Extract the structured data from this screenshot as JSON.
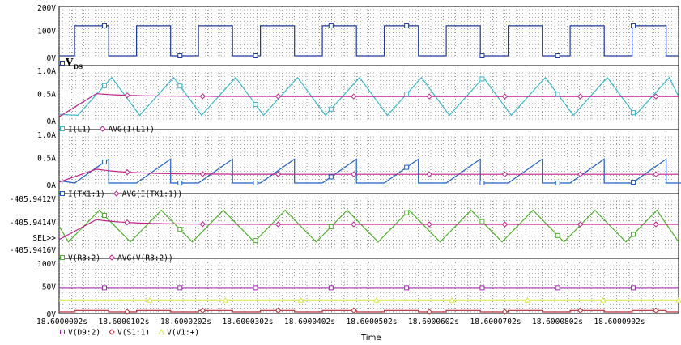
{
  "chart_data": {
    "type": "line",
    "xlabel": "Time",
    "x_tick_labels": [
      "18.6000002s",
      "18.6000102s",
      "18.6000202s",
      "18.6000302s",
      "18.6000402s",
      "18.6000502s",
      "18.6000602s",
      "18.6000702s",
      "18.6000802s",
      "18.6000902s"
    ],
    "x_range_us": [
      0,
      10
    ],
    "switching_period_us": 1,
    "grid": true,
    "panels": [
      {
        "id": "p1",
        "y_tick_labels": [
          "200V",
          "100V",
          "0V"
        ],
        "ylim": [
          0,
          200
        ],
        "series": [
          {
            "name": "V_DS",
            "color": "#1f3b9e",
            "marker": "square",
            "shape": "pulse",
            "high": 130,
            "low": 0,
            "on_fraction": 0.55
          }
        ],
        "annotation": {
          "main": "V",
          "sub": "DS"
        }
      },
      {
        "id": "p2",
        "y_tick_labels": [
          "1.0A",
          "0.5A",
          "0A"
        ],
        "ylim": [
          0,
          1
        ],
        "series": [
          {
            "name": "I(L1)",
            "color": "#3ab8c8",
            "marker": "square",
            "shape": "triangle",
            "min": 0.08,
            "max": 0.9,
            "rise_fraction": 0.55
          },
          {
            "name": "AVG(I(L1))",
            "color": "#c0228c",
            "marker": "diamond",
            "shape": "average",
            "final": 0.49,
            "start": 0.05,
            "peak": 0.55
          }
        ]
      },
      {
        "id": "p3",
        "y_tick_labels": [
          "1.0A",
          "0.5A",
          "0A"
        ],
        "ylim": [
          0,
          1
        ],
        "series": [
          {
            "name": "I(TX1:1)",
            "color": "#1f5fc4",
            "marker": "square",
            "shape": "ramp",
            "min": 0.0,
            "max": 0.52,
            "rise_fraction": 0.55
          },
          {
            "name": "AVG(I(TX1:1))",
            "color": "#c0228c",
            "marker": "diamond",
            "shape": "average",
            "final": 0.19,
            "start": 0.02,
            "peak": 0.3
          }
        ]
      },
      {
        "id": "p4",
        "y_tick_labels": [
          "-405.9412V",
          "-405.9414V",
          "-405.9416V"
        ],
        "ylim": [
          -405.9416,
          -405.9412
        ],
        "sel_label": "SEL>>",
        "series": [
          {
            "name": "V(R3:2)",
            "color": "#4caf2a",
            "marker": "square",
            "shape": "triangle_wave",
            "min": -405.94155,
            "max": -405.94128
          },
          {
            "name": "AVG(V(R3:2))",
            "color": "#c0228c",
            "marker": "diamond",
            "shape": "average",
            "final": -405.9414,
            "start": -405.94153,
            "peak": -405.94136
          }
        ]
      },
      {
        "id": "p5",
        "y_tick_labels": [
          "100V",
          "50V",
          "0V"
        ],
        "ylim": [
          0,
          100
        ],
        "series": [
          {
            "name": "V(D9:2)",
            "color": "#9b2aa8",
            "marker": "square",
            "shape": "constant",
            "value": 52
          },
          {
            "name": "V(S1:1)",
            "color": "#b0303a",
            "marker": "diamond",
            "shape": "pulse_low",
            "high": 3,
            "low": 0,
            "on_fraction": 0.55
          },
          {
            "name": "V(V1:+)",
            "color": "#d6e84a",
            "marker": "triangle",
            "shape": "constant",
            "value": 25
          }
        ]
      }
    ]
  }
}
